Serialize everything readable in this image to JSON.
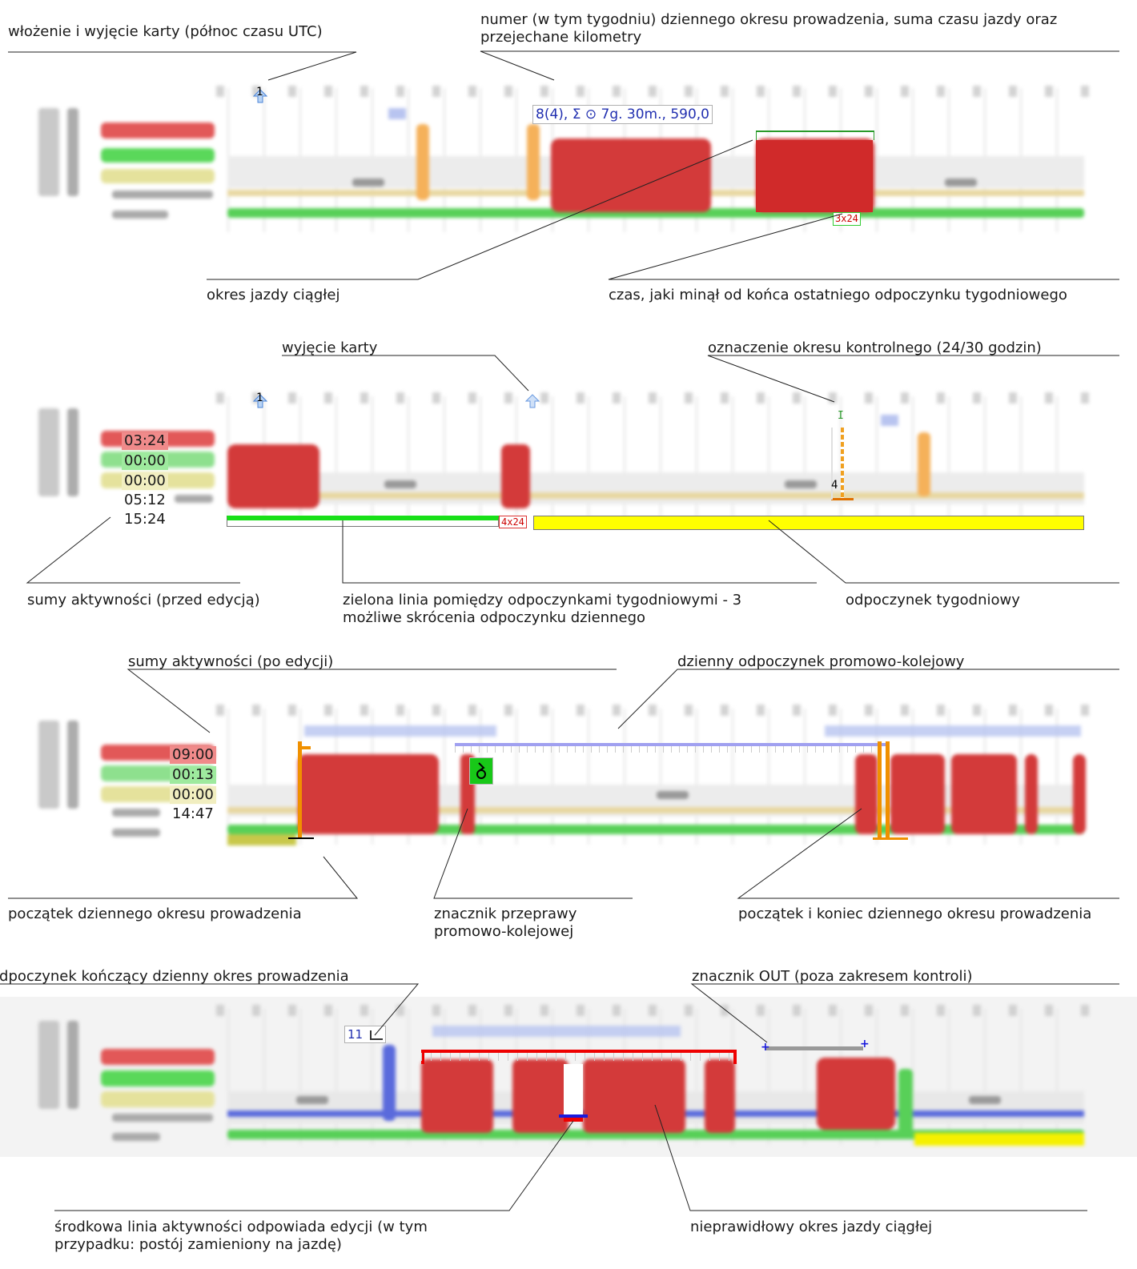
{
  "annotations": {
    "p1_card": "włożenie i wyjęcie karty (północ czasu UTC)",
    "p1_number": "numer (w tym tygodniu) dziennego okresu prowadzenia, suma czasu jazdy oraz przejechane kilometry",
    "p1_continuous": "okres jazdy ciągłej",
    "p1_elapsed": "czas, jaki minął od końca ostatniego odpoczynku tygodniowego",
    "p2_card_out": "wyjęcie karty",
    "p2_control": "oznaczenie okresu kontrolnego (24/30 godzin)",
    "p2_sums_before": "sumy aktywności (przed edycją)",
    "p2_green_line": "zielona linia pomiędzy odpoczynkami tygodniowymi - 3 możliwe skrócenia odpoczynku dziennego",
    "p2_weekly_rest": "odpoczynek tygodniowy",
    "p3_sums_after": "sumy aktywności (po edycji)",
    "p3_ferry_rest": "dzienny odpoczynek promowo-kolejowy",
    "p3_start": "początek dziennego okresu prowadzenia",
    "p3_ferry_marker": "znacznik przeprawy promowo-kolejowej",
    "p3_start_end": "początek i koniec dziennego okresu prowadzenia",
    "p4_rest_end": "odpoczynek kończący dzienny okres prowadzenia",
    "p4_out": "znacznik OUT (poza zakresem kontroli)",
    "p4_middle_line": "środkowa linia aktywności odpowiada edycji (w tym przypadku: postój zamieniony na jazdę)",
    "p4_invalid": "nieprawidłowy okres jazdy ciągłej"
  },
  "panel1": {
    "card_marker": "1",
    "summary": "8(4), Σ ⊙ 7g. 30m., 590,0",
    "elapsed": "3x24"
  },
  "panel2": {
    "card_marker": "1",
    "sums": [
      "03:24",
      "00:00",
      "00:00",
      "05:12",
      "15:24"
    ],
    "elapsed": "4x24",
    "control_top": "I",
    "control_bottom": "4"
  },
  "panel3": {
    "sums": [
      "09:00",
      "00:13",
      "00:00",
      "14:47"
    ],
    "ferry_icon": "ferry-icon"
  },
  "panel4": {
    "rest_number": "11",
    "rest_icon": "bed-icon"
  },
  "colors": {
    "driving": "#d33a3a",
    "rest_green": "#38d438",
    "weekly_rest_yellow": "#ffff00",
    "rest_line": "#e8c890",
    "ferry_line": "#9c9cf0",
    "edit_blue": "#3b3bd6",
    "invalid_red": "#ff0000",
    "marker_orange": "#f5a000"
  }
}
